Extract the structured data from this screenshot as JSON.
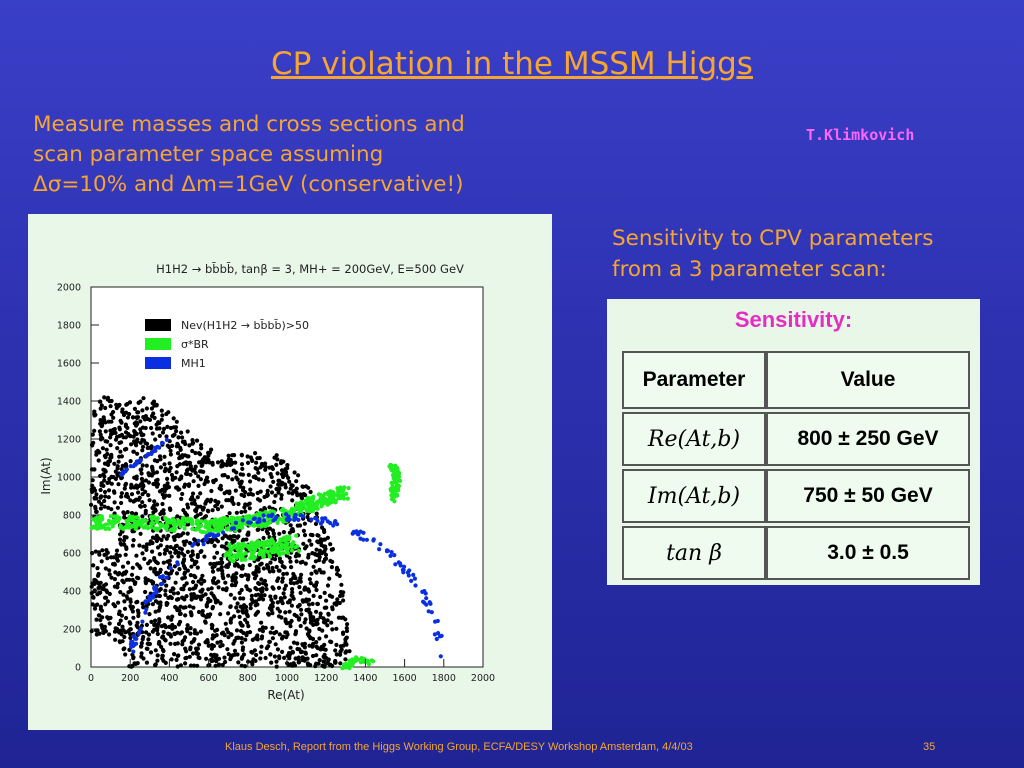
{
  "slide": {
    "title": "CP violation in the MSSM Higgs",
    "intro_line1": "Measure masses and cross sections and",
    "intro_line2": "scan parameter space assuming",
    "intro_line3": "Δσ=10% and Δm=1GeV (conservative!)",
    "author": "T.Klimkovich",
    "sensitivity_line1": "Sensitivity to CPV parameters",
    "sensitivity_line2": "from a 3 parameter scan:",
    "footer": "Klaus Desch, Report from the Higgs Working Group, ECFA/DESY Workshop Amsterdam, 4/4/03",
    "page_number": "35"
  },
  "table": {
    "heading": "Sensitivity:",
    "headers": [
      "Parameter",
      "Value"
    ],
    "rows": [
      {
        "param": "Re(At,b)",
        "value": "800 ± 250 GeV"
      },
      {
        "param": "Im(At,b)",
        "value": "750 ± 50 GeV"
      },
      {
        "param": "tan β",
        "value": "3.0 ± 0.5"
      }
    ]
  },
  "chart_data": {
    "type": "scatter",
    "title": "H1H2 → bb̄bb̄, tanβ = 3, MH+ = 200GeV, E=500 GeV",
    "xlabel": "Re(At)",
    "ylabel": "Im(At)",
    "xlim": [
      0,
      2000
    ],
    "ylim": [
      0,
      2000
    ],
    "xticks": [
      "0",
      "200",
      "400",
      "600",
      "800",
      "1000",
      "1200",
      "1400",
      "1600",
      "1800",
      "2000"
    ],
    "yticks": [
      "0",
      "200",
      "400",
      "600",
      "800",
      "1000",
      "1200",
      "1400",
      "1600",
      "1800",
      "2000"
    ],
    "legend_position": "top-left",
    "series": [
      {
        "name": "Nev(H1H2 → bb̄bb̄)>50",
        "color": "#000000",
        "description_region": {
          "center": [
            0,
            0
          ],
          "radius_min": 0,
          "radius_max": 1390,
          "edge": "ragged"
        }
      },
      {
        "name": "σ*BR",
        "color": "#22ee22",
        "band": [
          [
            0,
            760
          ],
          [
            300,
            760
          ],
          [
            600,
            740
          ],
          [
            800,
            760
          ],
          [
            1000,
            800
          ],
          [
            1150,
            870
          ],
          [
            1300,
            920
          ]
        ],
        "band2": [
          [
            700,
            600
          ],
          [
            900,
            620
          ],
          [
            1050,
            650
          ]
        ]
      },
      {
        "name": "MH1",
        "color": "#0a2fe0",
        "arc_center": [
          1000,
          0
        ],
        "arc_radius": 790
      }
    ]
  }
}
